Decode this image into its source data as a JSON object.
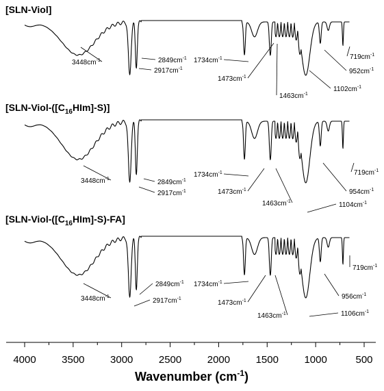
{
  "chart_data": {
    "type": "line",
    "xlabel": "Wavenumber (cm-1)",
    "xlim": [
      4000,
      500
    ],
    "x_ticks": [
      "4000",
      "3500",
      "3000",
      "2500",
      "2000",
      "1500",
      "1000",
      "500"
    ],
    "ylabel": "",
    "grid": false,
    "series": [
      {
        "name": "[SLN-Viol]",
        "labels": [
          "3448cm-1",
          "2917cm-1",
          "2849cm-1",
          "1734cm-1",
          "1473cm-1",
          "1463cm-1",
          "1102cm-1",
          "952cm-1",
          "719cm-1"
        ]
      },
      {
        "name": "[SLN-Viol-([C16HIm]-S)]",
        "labels": [
          "3448cm-1",
          "2917cm-1",
          "2849cm-1",
          "1734cm-1",
          "1473cm-1",
          "1463cm-1",
          "1104cm-1",
          "954cm-1",
          "719cm-1"
        ]
      },
      {
        "name": "[SLN-Viol-([C16HIm]-S)-FA]",
        "labels": [
          "3448cm-1",
          "2917cm-1",
          "2849cm-1",
          "1734cm-1",
          "1473cm-1",
          "1463cm-1",
          "1106cm-1",
          "956cm-1",
          "719cm-1"
        ]
      }
    ]
  }
}
